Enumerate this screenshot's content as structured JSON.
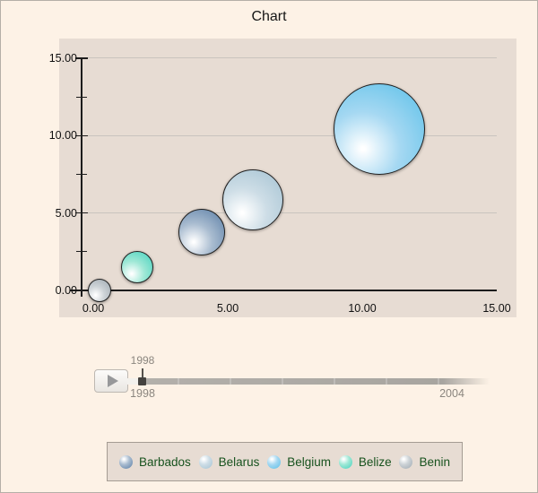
{
  "window": {
    "title": "Chart"
  },
  "chart_data": {
    "type": "bubble",
    "title": "Chart",
    "xlabel": "",
    "ylabel": "",
    "xlim": [
      0,
      15
    ],
    "ylim": [
      0,
      15
    ],
    "grid": true,
    "legend_position": "bottom",
    "x_ticks": [
      {
        "value": 0,
        "label": "0.00"
      },
      {
        "value": 5,
        "label": "5.00"
      },
      {
        "value": 10,
        "label": "10.00"
      },
      {
        "value": 15,
        "label": "15.00"
      }
    ],
    "y_ticks": [
      {
        "value": 0,
        "label": "0.00"
      },
      {
        "value": 5,
        "label": "5.00"
      },
      {
        "value": 10,
        "label": "10.00"
      },
      {
        "value": 15,
        "label": "15.00"
      }
    ],
    "y_minor_tick_values": [
      2.5,
      7.5,
      12.5
    ],
    "series": [
      {
        "name": "Benin",
        "x": 0.2,
        "y": 0.05,
        "radius_px": 12,
        "color_outer": "#9fa9b1",
        "color_mid": "#ccd2d6",
        "color_highlight": "#ffffff"
      },
      {
        "name": "Belize",
        "x": 1.6,
        "y": 1.55,
        "radius_px": 17,
        "color_outer": "#41d1bd",
        "color_mid": "#9fe8d6",
        "color_highlight": "#ffffff"
      },
      {
        "name": "Barbados",
        "x": 4.0,
        "y": 3.8,
        "radius_px": 25,
        "color_outer": "#587ca4",
        "color_mid": "#a9bcd0",
        "color_highlight": "#ffffff"
      },
      {
        "name": "Belarus",
        "x": 5.9,
        "y": 5.9,
        "radius_px": 33,
        "color_outer": "#a4c2d2",
        "color_mid": "#cddde6",
        "color_highlight": "#ffffff"
      },
      {
        "name": "Belgium",
        "x": 10.6,
        "y": 10.5,
        "radius_px": 50,
        "color_outer": "#58bfe8",
        "color_mid": "#a5d8f2",
        "color_highlight": "#ffffff"
      }
    ],
    "legend_order": [
      "Barbados",
      "Belarus",
      "Belgium",
      "Belize",
      "Benin"
    ]
  },
  "timeline": {
    "tooltip": "1998",
    "start_label": "1998",
    "end_label": "2004"
  },
  "colors": {
    "page_bg": "#fdf2e6",
    "plot_bg": "#e7dcd3",
    "gridline": "#c9c4be",
    "axis": "#1c1c1c",
    "legend_text": "#17521e",
    "legend_bg": "#e7dcd3",
    "legend_border": "#a59c93",
    "slider_text": "#8b867f",
    "slider_thumb": "#44423f"
  }
}
